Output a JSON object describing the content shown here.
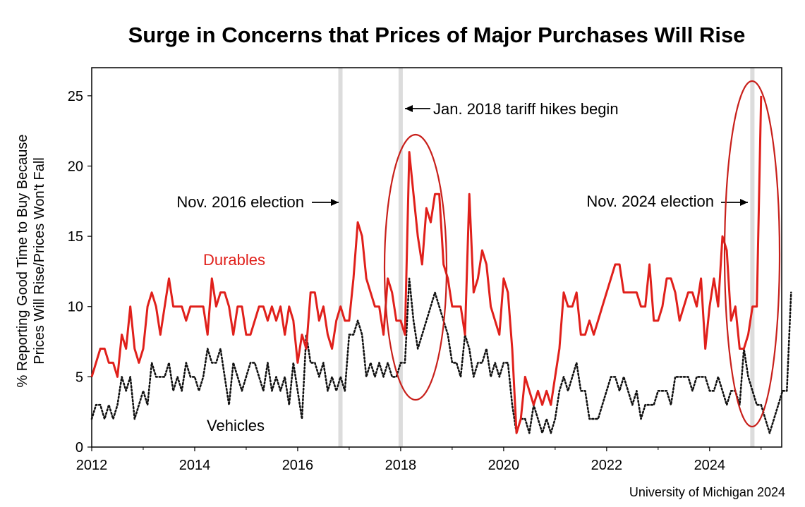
{
  "chart_data": {
    "type": "line",
    "title": "Surge in Concerns that Prices of Major Purchases Will Rise",
    "ylabel_line1": "% Reporting Good Time to Buy Because",
    "ylabel_line2": "Prices Will Rise/Prices Won't Fall",
    "ylim": [
      0,
      27
    ],
    "yticks": [
      "0",
      "5",
      "10",
      "15",
      "20",
      "25"
    ],
    "xlim": [
      2012,
      2025.4
    ],
    "xticks": [
      "2012",
      "2014",
      "2016",
      "2018",
      "2020",
      "2022",
      "2024"
    ],
    "grid": false,
    "highlights": [
      {
        "label": "Nov. 2016 election",
        "x": 2016.83
      },
      {
        "label": "Jan. 2018 tariff hikes begin",
        "x": 2018.0
      },
      {
        "label": "Nov. 2024 election",
        "x": 2024.83
      }
    ],
    "series": [
      {
        "name": "Durables",
        "color": "#e0201b",
        "style": "solid",
        "x_start": 2012.0,
        "x_step": 0.08333,
        "values": [
          5,
          6,
          7,
          7,
          6,
          6,
          5,
          8,
          7,
          10,
          7,
          6,
          7,
          10,
          11,
          10,
          8,
          10,
          12,
          10,
          10,
          10,
          9,
          10,
          10,
          10,
          10,
          8,
          12,
          10,
          11,
          11,
          10,
          8,
          10,
          10,
          8,
          8,
          9,
          10,
          10,
          9,
          10,
          9,
          10,
          8,
          10,
          9,
          6,
          8,
          7,
          11,
          11,
          9,
          10,
          8,
          7,
          9,
          10,
          9,
          9,
          12,
          16,
          15,
          12,
          11,
          10,
          10,
          8,
          12,
          11,
          9,
          9,
          8,
          21,
          18,
          15,
          13,
          17,
          16,
          18,
          18,
          13,
          12,
          10,
          10,
          10,
          8,
          18,
          11,
          12,
          14,
          13,
          10,
          9,
          8,
          12,
          11,
          7,
          1,
          2,
          5,
          4,
          3,
          4,
          3,
          4,
          3,
          5,
          7,
          11,
          10,
          10,
          11,
          8,
          8,
          9,
          8,
          9,
          10,
          11,
          12,
          13,
          13,
          11,
          11,
          11,
          11,
          10,
          10,
          13,
          9,
          9,
          10,
          12,
          12,
          11,
          9,
          10,
          11,
          11,
          10,
          12,
          7,
          10,
          12,
          10,
          15,
          14,
          9,
          10,
          7,
          7,
          8,
          10,
          10,
          25
        ],
        "label": "Durables"
      },
      {
        "name": "Vehicles",
        "color": "#111111",
        "style": "dotted",
        "x_start": 2012.0,
        "x_step": 0.08333,
        "values": [
          2,
          3,
          3,
          2,
          3,
          2,
          3,
          5,
          4,
          5,
          2,
          3,
          4,
          3,
          6,
          5,
          5,
          5,
          6,
          4,
          5,
          4,
          6,
          5,
          5,
          4,
          5,
          7,
          6,
          6,
          7,
          5,
          3,
          6,
          5,
          4,
          5,
          6,
          6,
          5,
          4,
          6,
          4,
          5,
          4,
          5,
          3,
          6,
          4,
          2,
          8,
          6,
          6,
          5,
          6,
          4,
          5,
          4,
          5,
          4,
          8,
          8,
          9,
          8,
          5,
          6,
          5,
          6,
          5,
          6,
          5,
          5,
          6,
          6,
          12,
          9,
          7,
          8,
          9,
          10,
          11,
          10,
          9,
          8,
          6,
          6,
          5,
          8,
          7,
          5,
          6,
          6,
          7,
          5,
          6,
          5,
          6,
          6,
          3,
          1,
          2,
          2,
          1,
          3,
          2,
          1,
          2,
          1,
          2,
          4,
          5,
          4,
          5,
          6,
          4,
          4,
          2,
          2,
          2,
          3,
          4,
          5,
          5,
          4,
          5,
          4,
          3,
          4,
          2,
          3,
          3,
          3,
          4,
          4,
          4,
          3,
          5,
          5,
          5,
          5,
          4,
          5,
          5,
          5,
          4,
          4,
          5,
          4,
          3,
          4,
          4,
          3,
          7,
          5,
          4,
          3,
          3,
          2,
          1,
          2,
          3,
          4,
          4,
          11
        ],
        "label": "Vehicles"
      }
    ],
    "credit": "University of Michigan 2024"
  }
}
